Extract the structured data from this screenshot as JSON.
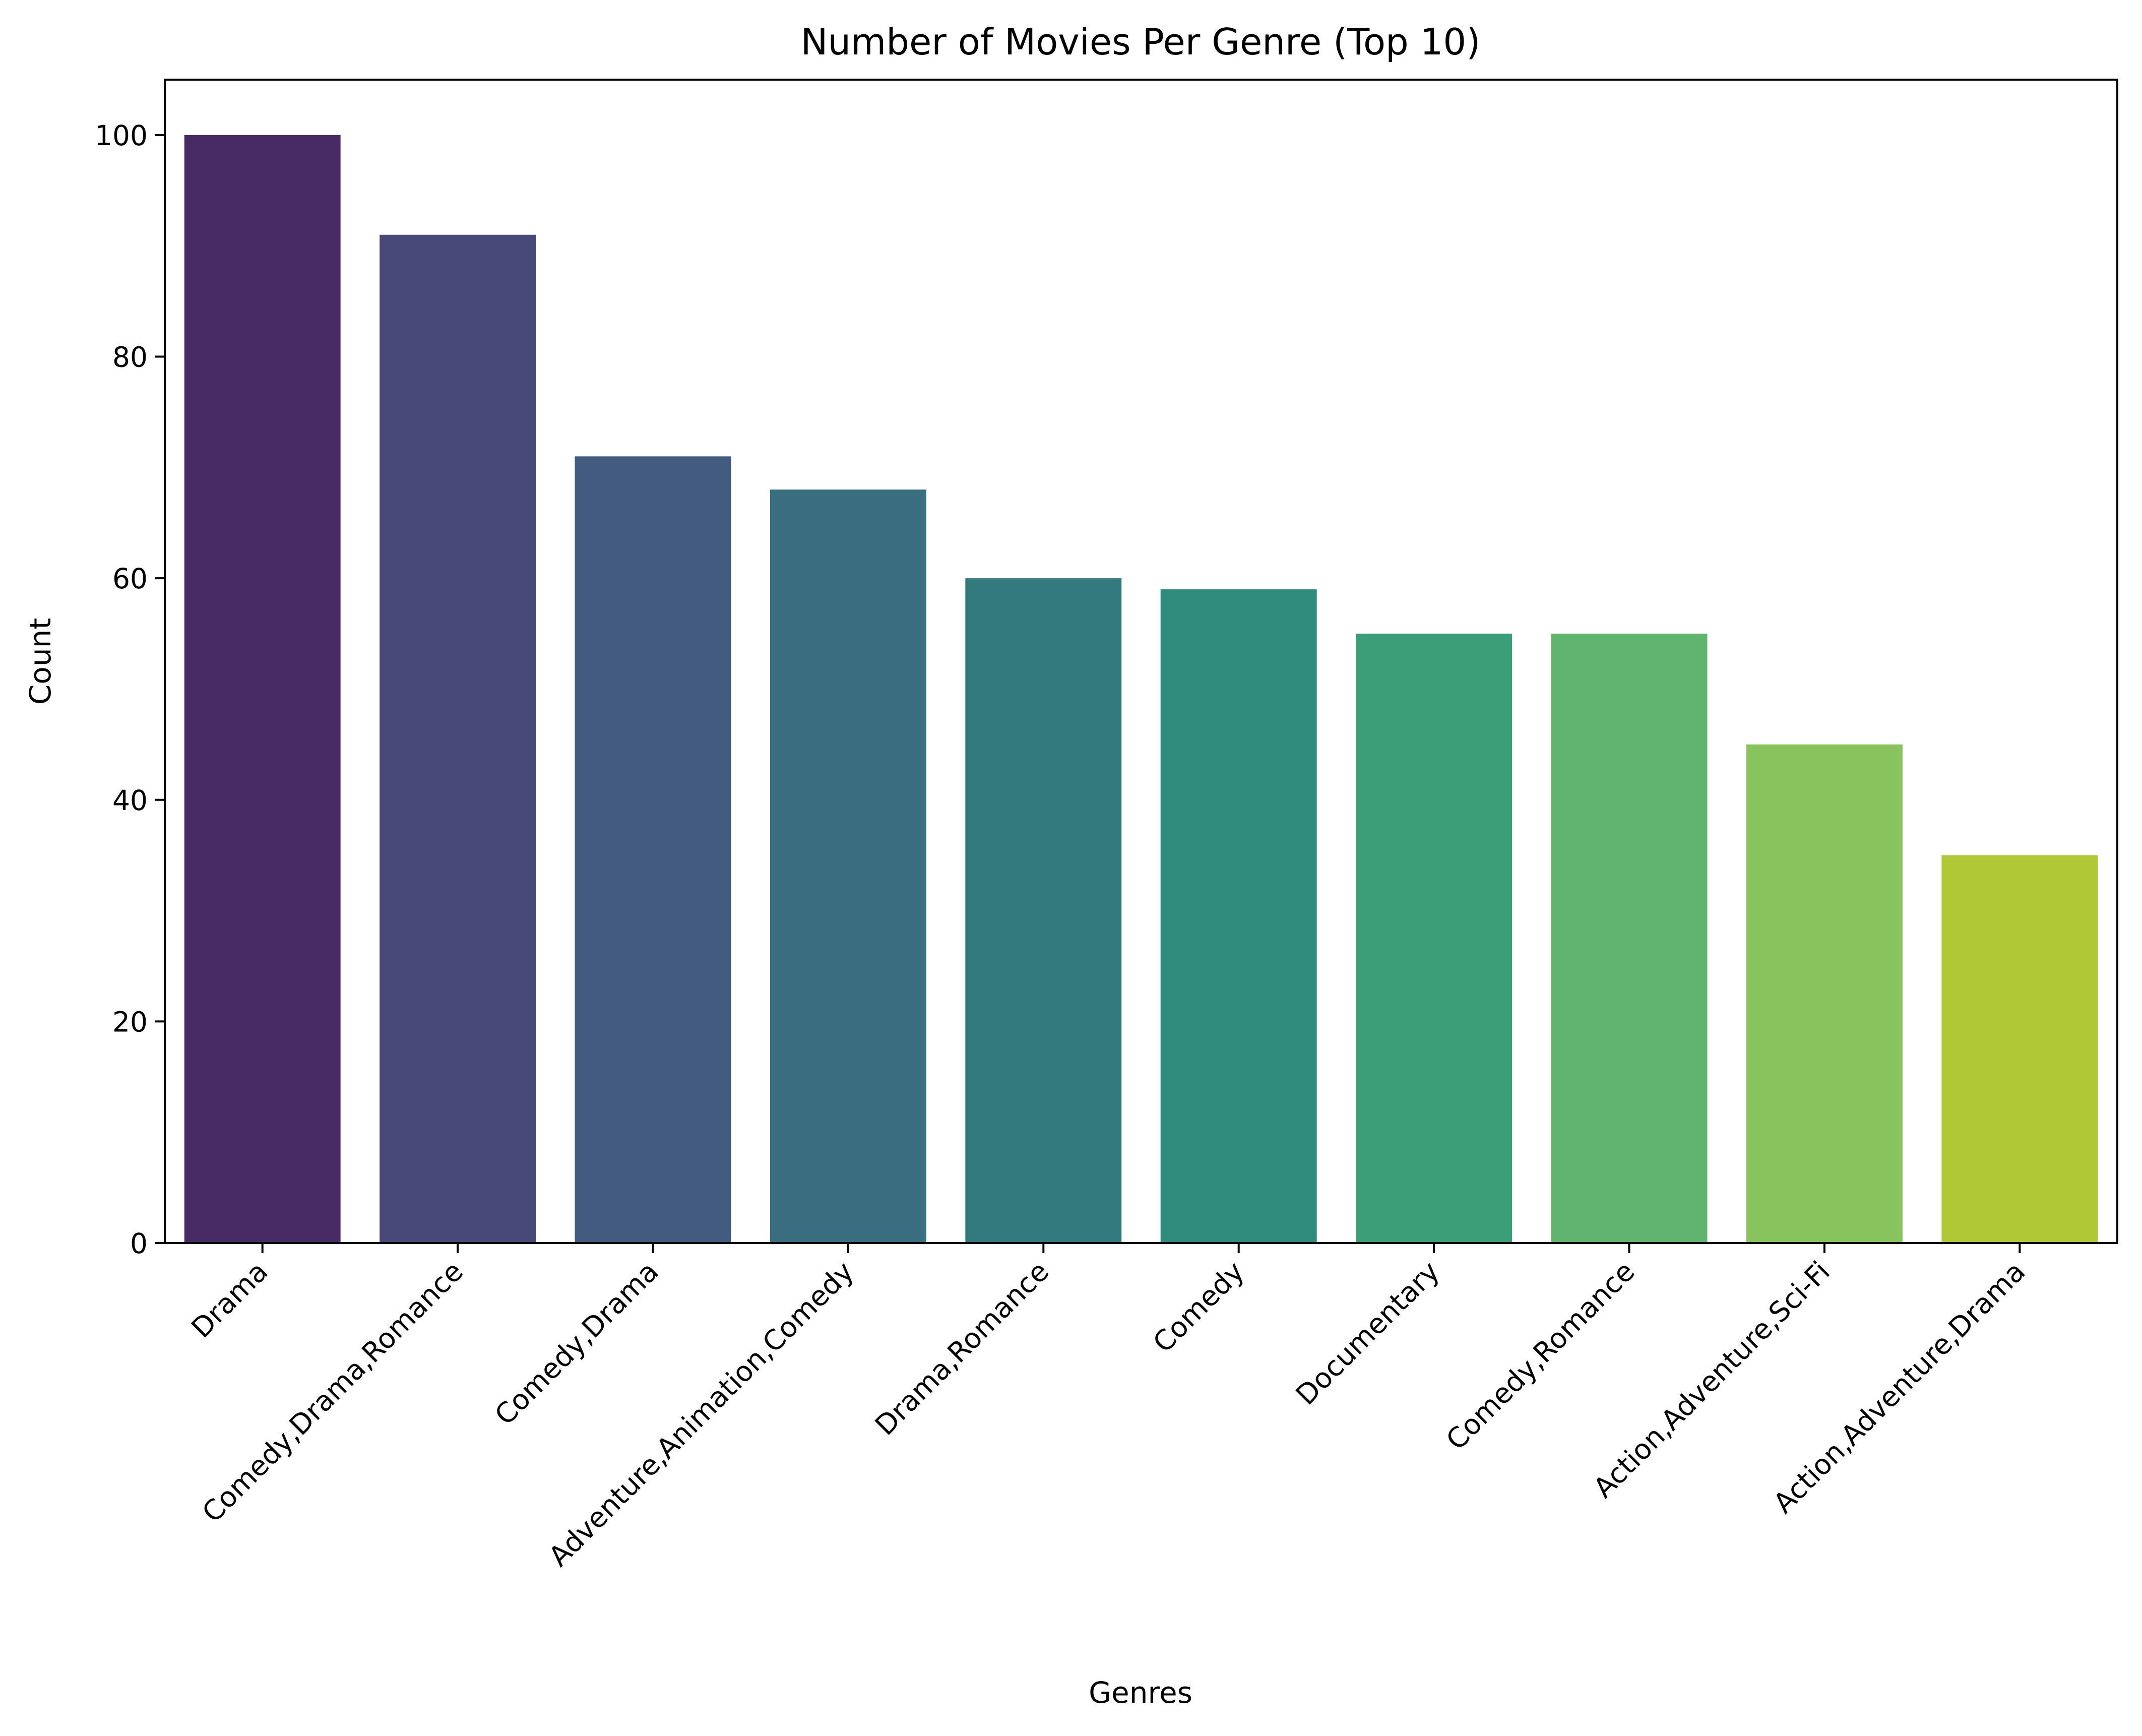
{
  "chart_data": {
    "type": "bar",
    "title": "Number of Movies Per Genre (Top 10)",
    "xlabel": "Genres",
    "ylabel": "Count",
    "categories": [
      "Drama",
      "Comedy,Drama,Romance",
      "Comedy,Drama",
      "Adventure,Animation,Comedy",
      "Drama,Romance",
      "Comedy",
      "Documentary",
      "Comedy,Romance",
      "Action,Adventure,Sci-Fi",
      "Action,Adventure,Drama"
    ],
    "values": [
      100,
      91,
      71,
      68,
      60,
      59,
      55,
      55,
      45,
      35
    ],
    "colors": [
      "#482a65",
      "#484979",
      "#435b7f",
      "#3a6d7f",
      "#337a7f",
      "#2f8b7c",
      "#3c9e78",
      "#61b46f",
      "#89c35d",
      "#b1c836"
    ],
    "ylim": [
      0,
      105
    ],
    "yticks": [
      0,
      20,
      40,
      60,
      80,
      100
    ],
    "grid": false,
    "legend": "none"
  }
}
